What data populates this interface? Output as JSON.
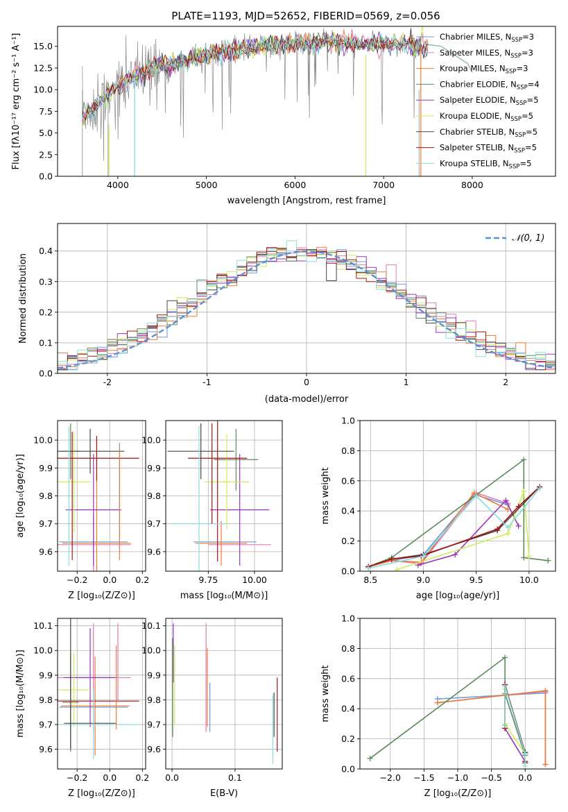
{
  "figure_title": "PLATE=1193, MJD=52652, FIBERID=0569, z=0.056",
  "colors": {
    "chabrier_miles": "#6a9bd8",
    "salpeter_miles": "#e07ab8",
    "kroupa_miles": "#ee7a33",
    "chabrier_elodie": "#5a8a5a",
    "salpeter_elodie": "#9933bb",
    "kroupa_elodie": "#ccee55",
    "chabrier_stelib": "#444444",
    "salpeter_stelib": "#aa1111",
    "kroupa_stelib": "#88dddd",
    "normal": "#5b8fd6",
    "observed": "#888888"
  },
  "legend_entries": [
    {
      "base": "Chabrier MILES, N",
      "sub": "SSP",
      "tail": "=3",
      "color_key": "chabrier_miles"
    },
    {
      "base": "Salpeter MILES, N",
      "sub": "SSP",
      "tail": "=3",
      "color_key": "salpeter_miles"
    },
    {
      "base": "Kroupa MILES, N",
      "sub": "SSP",
      "tail": "=3",
      "color_key": "kroupa_miles"
    },
    {
      "base": "Chabrier ELODIE, N",
      "sub": "SSP",
      "tail": "=4",
      "color_key": "chabrier_elodie"
    },
    {
      "base": "Salpeter ELODIE, N",
      "sub": "SSP",
      "tail": "=5",
      "color_key": "salpeter_elodie"
    },
    {
      "base": "Kroupa ELODIE, N",
      "sub": "SSP",
      "tail": "=5",
      "color_key": "kroupa_elodie"
    },
    {
      "base": "Chabrier STELIB, N",
      "sub": "SSP",
      "tail": "=5",
      "color_key": "chabrier_stelib"
    },
    {
      "base": "Salpeter STELIB, N",
      "sub": "SSP",
      "tail": "=5",
      "color_key": "salpeter_stelib"
    },
    {
      "base": "Kroupa STELIB, N",
      "sub": "SSP",
      "tail": "=5",
      "color_key": "kroupa_stelib"
    }
  ],
  "chart_data": [
    {
      "id": "spectrum",
      "type": "line",
      "xlabel": "wavelength [Angstrom, rest frame]",
      "ylabel": "Flux [fλ10⁻¹⁷ erg cm⁻² s⁻¹ A⁻¹]",
      "xlim": [
        3320,
        8940
      ],
      "ylim": [
        0,
        17.3
      ],
      "xticks": [
        4000,
        5000,
        6000,
        7000,
        8000
      ],
      "yticks": [
        0.0,
        2.5,
        5.0,
        7.5,
        10.0,
        12.5,
        15.0
      ],
      "continuum": {
        "x": [
          3600,
          3700,
          3800,
          3900,
          4000,
          4100,
          4200,
          4300,
          4400,
          4600,
          4800,
          5000,
          5200,
          5400,
          5600,
          5800,
          6000,
          6200,
          6400,
          6600,
          6800,
          7000,
          7200,
          7400,
          7500
        ],
        "y": [
          6.5,
          7.5,
          8.5,
          9.5,
          10.5,
          11.0,
          11.5,
          12.0,
          12.5,
          13.0,
          13.5,
          14.0,
          14.5,
          14.8,
          15.0,
          15.2,
          15.4,
          15.5,
          15.5,
          15.4,
          15.3,
          15.2,
          15.2,
          15.0,
          14.8
        ]
      },
      "model_end": [
        7500,
        7650,
        7800,
        7950,
        8000
      ],
      "model_end_flux": [
        15.2,
        15.0,
        14.0,
        13.0,
        12.0
      ]
    },
    {
      "id": "residual_hist",
      "type": "line",
      "xlabel": "(data-model)/error",
      "ylabel": "Normed distribution",
      "legend": "𝒩(0, 1)",
      "xlim": [
        -2.5,
        2.5
      ],
      "ylim": [
        0,
        0.49
      ],
      "xticks": [
        -2,
        -1,
        0,
        1,
        2
      ],
      "yticks": [
        0.0,
        0.1,
        0.2,
        0.3,
        0.4
      ],
      "bin_width": 0.1,
      "grid": true
    },
    {
      "id": "age_vs_Z",
      "type": "scatter",
      "xlabel": "Z [log₁₀(Z/Z⊙)]",
      "ylabel": "age  [log₁₀(age/yr)]",
      "xlim": [
        -0.32,
        0.22
      ],
      "ylim": [
        9.53,
        10.07
      ],
      "xticks": [
        -0.2,
        0.0,
        0.2
      ],
      "xticklabels": [
        "−0.2",
        "0.0",
        "0.2"
      ],
      "yticks": [
        9.6,
        9.7,
        9.8,
        9.9,
        10.0
      ],
      "yticklabels": [
        "9.6",
        "9.7",
        "9.8",
        "9.9",
        "10.0"
      ],
      "grid": true
    },
    {
      "id": "age_vs_mass",
      "type": "scatter",
      "xlabel": "mass [log₁₀(M/M⊙)]",
      "xlim": [
        9.52,
        10.15
      ],
      "ylim": [
        9.53,
        10.07
      ],
      "xticks": [
        9.75,
        10.0
      ],
      "xticklabels": [
        "9.75",
        "10.00"
      ],
      "yticks": [
        9.6,
        9.7,
        9.8,
        9.9,
        10.0
      ],
      "yticklabels": [
        "9.6",
        "9.7",
        "9.8",
        "9.9",
        "10.0"
      ],
      "grid": true
    },
    {
      "id": "weight_vs_age",
      "type": "line",
      "xlabel": "age  [log₁₀(age/yr)]",
      "ylabel": "mass weight",
      "xlim": [
        8.4,
        10.25
      ],
      "ylim": [
        0,
        1.0
      ],
      "xticks": [
        8.5,
        9.0,
        9.5,
        10.0
      ],
      "xticklabels": [
        "8.5",
        "9.0",
        "9.5",
        "10.0"
      ],
      "yticks": [
        0.0,
        0.2,
        0.4,
        0.6,
        0.8,
        1.0
      ],
      "yticklabels": [
        "0.0",
        "0.2",
        "0.4",
        "0.6",
        "0.8",
        "1.0"
      ],
      "grid": true,
      "series": [
        {
          "key": "chabrier_miles",
          "x": [
            8.48,
            8.7,
            9.0,
            9.48,
            9.8
          ],
          "y": [
            0.03,
            0.07,
            0.11,
            0.51,
            0.44
          ]
        },
        {
          "key": "salpeter_miles",
          "x": [
            8.48,
            8.7,
            8.98,
            9.5,
            9.8
          ],
          "y": [
            0.03,
            0.07,
            0.05,
            0.52,
            0.45
          ]
        },
        {
          "key": "kroupa_miles",
          "x": [
            8.48,
            8.7,
            8.98,
            9.48,
            9.8
          ],
          "y": [
            0.03,
            0.07,
            0.06,
            0.52,
            0.41
          ]
        },
        {
          "key": "chabrier_elodie",
          "x": [
            8.48,
            8.7,
            9.95,
            9.95,
            10.18
          ],
          "y": [
            0.03,
            0.09,
            0.74,
            0.09,
            0.07
          ]
        },
        {
          "key": "salpeter_elodie",
          "x": [
            8.95,
            9.3,
            9.78,
            9.9
          ],
          "y": [
            0.04,
            0.11,
            0.47,
            0.3
          ]
        },
        {
          "key": "kroupa_elodie",
          "x": [
            8.75,
            9.8,
            9.95,
            10.0
          ],
          "y": [
            0.01,
            0.25,
            0.53,
            0.1
          ]
        },
        {
          "key": "chabrier_stelib",
          "x": [
            8.48,
            8.7,
            9.0,
            9.7,
            10.1
          ],
          "y": [
            0.03,
            0.08,
            0.11,
            0.27,
            0.56
          ]
        },
        {
          "key": "salpeter_stelib",
          "x": [
            8.48,
            8.7,
            8.98,
            9.7,
            9.9,
            10.1
          ],
          "y": [
            0.03,
            0.08,
            0.1,
            0.28,
            0.43,
            0.56
          ]
        },
        {
          "key": "kroupa_stelib",
          "x": [
            8.48,
            9.0,
            9.5,
            9.8,
            10.1
          ],
          "y": [
            0.02,
            0.1,
            0.5,
            0.29,
            0.55
          ]
        }
      ]
    },
    {
      "id": "mass_vs_Z",
      "type": "scatter",
      "xlabel": "Z [log₁₀(Z/Z⊙)]",
      "ylabel": "mass [log₁₀(M/M⊙)]",
      "xlim": [
        -0.32,
        0.22
      ],
      "ylim": [
        9.52,
        10.13
      ],
      "xticks": [
        -0.2,
        0.0,
        0.2
      ],
      "xticklabels": [
        "−0.2",
        "0.0",
        "0.2"
      ],
      "yticks": [
        9.6,
        9.7,
        9.8,
        9.9,
        10.0,
        10.1
      ],
      "yticklabels": [
        "9.6",
        "9.7",
        "9.8",
        "9.9",
        "10.0",
        "10.1"
      ],
      "grid": true
    },
    {
      "id": "mass_vs_ebv",
      "type": "scatter",
      "xlabel": "E(B-V)",
      "xlim": [
        -0.01,
        0.175
      ],
      "ylim": [
        9.52,
        10.13
      ],
      "xticks": [
        0.0,
        0.1
      ],
      "xticklabels": [
        "0.0",
        "0.1"
      ],
      "yticks": [
        9.6,
        9.7,
        9.8,
        9.9,
        10.0,
        10.1
      ],
      "yticklabels": [
        "9.6",
        "9.7",
        "9.8",
        "9.9",
        "10.0",
        "10.1"
      ],
      "grid": true
    },
    {
      "id": "weight_vs_Z",
      "type": "line",
      "xlabel": "Z [log₁₀(Z/Z⊙)]",
      "ylabel": "mass weight",
      "xlim": [
        -2.45,
        0.45
      ],
      "ylim": [
        0,
        1.0
      ],
      "xticks": [
        -2.0,
        -1.5,
        -1.0,
        -0.5,
        0.0
      ],
      "xticklabels": [
        "−2.0",
        "−1.5",
        "−1.0",
        "−0.5",
        "0.0"
      ],
      "yticks": [
        0.0,
        0.2,
        0.4,
        0.6,
        0.8,
        1.0
      ],
      "yticklabels": [
        "0.0",
        "0.2",
        "0.4",
        "0.6",
        "0.8",
        "1.0"
      ],
      "grid": true,
      "series": [
        {
          "key": "chabrier_miles",
          "x": [
            -1.3,
            -0.3,
            0.3
          ],
          "y": [
            0.465,
            0.49,
            0.505
          ]
        },
        {
          "key": "salpeter_miles",
          "x": [
            -1.3,
            -0.3,
            0.3,
            0.3
          ],
          "y": [
            0.44,
            0.49,
            0.515,
            0.03
          ]
        },
        {
          "key": "kroupa_miles",
          "x": [
            -1.3,
            -0.3,
            0.3,
            0.3
          ],
          "y": [
            0.44,
            0.49,
            0.52,
            0.03
          ]
        },
        {
          "key": "chabrier_elodie",
          "x": [
            -2.3,
            -0.3,
            -0.3,
            0.0,
            0.0
          ],
          "y": [
            0.07,
            0.74,
            0.5,
            0.09,
            0.05
          ]
        },
        {
          "key": "salpeter_elodie",
          "x": [
            -0.3,
            0.0,
            0.0
          ],
          "y": [
            0.27,
            0.05,
            0.11
          ]
        },
        {
          "key": "kroupa_elodie",
          "x": [
            -0.3,
            -0.3,
            0.0
          ],
          "y": [
            0.53,
            0.3,
            0.1
          ]
        },
        {
          "key": "chabrier_stelib",
          "x": [
            -0.3,
            -0.3,
            0.0,
            0.0
          ],
          "y": [
            0.29,
            0.56,
            0.11,
            0.04
          ]
        },
        {
          "key": "salpeter_stelib",
          "x": [
            -0.3,
            -0.3,
            0.0,
            0.0
          ],
          "y": [
            0.27,
            0.56,
            0.1,
            0.05
          ]
        },
        {
          "key": "kroupa_stelib",
          "x": [
            -0.3,
            -0.3,
            0.0,
            0.0
          ],
          "y": [
            0.29,
            0.55,
            0.1,
            0.02
          ]
        }
      ]
    }
  ]
}
